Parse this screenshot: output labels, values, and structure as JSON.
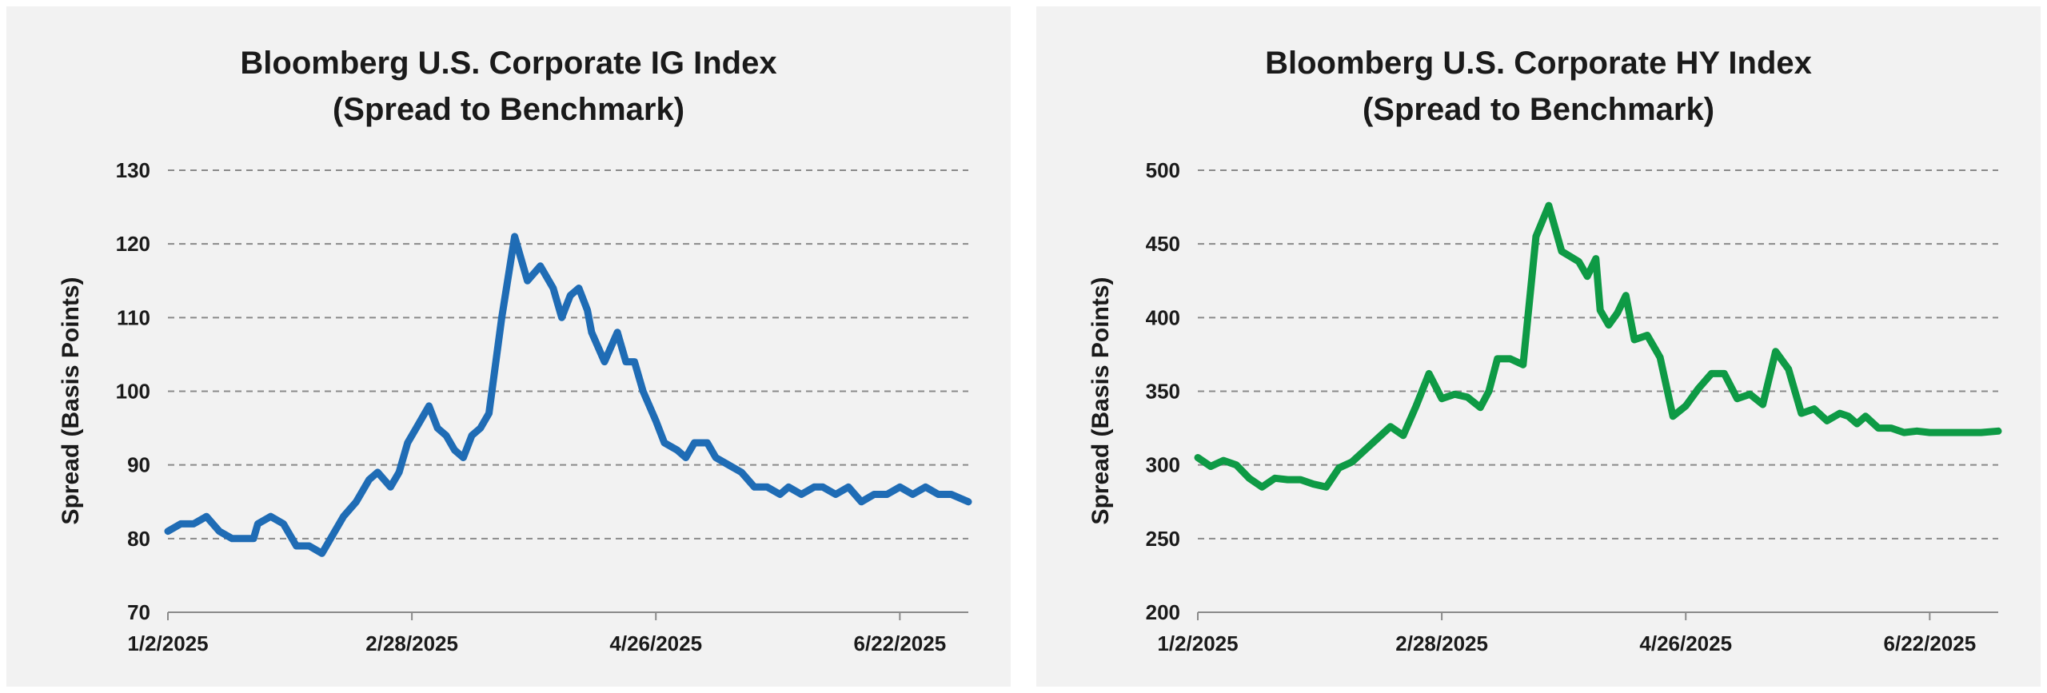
{
  "chart_data": [
    {
      "type": "line",
      "title_line1": "Bloomberg U.S. Corporate IG Index",
      "title_line2": "(Spread to Benchmark)",
      "xlabel": "",
      "ylabel": "Spread (Basis Points)",
      "ylim": [
        70,
        130
      ],
      "yticks": [
        70,
        80,
        90,
        100,
        110,
        120,
        130
      ],
      "xlim": [
        "2025-01-02",
        "2025-07-08"
      ],
      "xticks": [
        "1/2/2025",
        "2/28/2025",
        "4/26/2025",
        "6/22/2025"
      ],
      "grid": "horizontal-dashed",
      "color": "#1f6cb5",
      "x": [
        "2025-01-02",
        "2025-01-05",
        "2025-01-08",
        "2025-01-11",
        "2025-01-14",
        "2025-01-17",
        "2025-01-20",
        "2025-01-22",
        "2025-01-23",
        "2025-01-26",
        "2025-01-29",
        "2025-02-01",
        "2025-02-04",
        "2025-02-07",
        "2025-02-10",
        "2025-02-12",
        "2025-02-15",
        "2025-02-18",
        "2025-02-20",
        "2025-02-23",
        "2025-02-25",
        "2025-02-27",
        "2025-03-01",
        "2025-03-04",
        "2025-03-06",
        "2025-03-08",
        "2025-03-10",
        "2025-03-12",
        "2025-03-14",
        "2025-03-16",
        "2025-03-18",
        "2025-03-21",
        "2025-03-24",
        "2025-03-27",
        "2025-03-30",
        "2025-04-02",
        "2025-04-04",
        "2025-04-06",
        "2025-04-08",
        "2025-04-10",
        "2025-04-11",
        "2025-04-14",
        "2025-04-17",
        "2025-04-19",
        "2025-04-21",
        "2025-04-23",
        "2025-04-26",
        "2025-04-28",
        "2025-05-01",
        "2025-05-03",
        "2025-05-05",
        "2025-05-08",
        "2025-05-10",
        "2025-05-13",
        "2025-05-16",
        "2025-05-19",
        "2025-05-22",
        "2025-05-25",
        "2025-05-27",
        "2025-05-30",
        "2025-06-02",
        "2025-06-04",
        "2025-06-07",
        "2025-06-10",
        "2025-06-13",
        "2025-06-16",
        "2025-06-19",
        "2025-06-22",
        "2025-06-25",
        "2025-06-28",
        "2025-07-01",
        "2025-07-04",
        "2025-07-08"
      ],
      "values": [
        81,
        82,
        82,
        83,
        81,
        80,
        80,
        80,
        82,
        83,
        82,
        79,
        79,
        78,
        81,
        83,
        85,
        88,
        89,
        87,
        89,
        93,
        95,
        98,
        95,
        94,
        92,
        91,
        94,
        95,
        97,
        110,
        121,
        115,
        117,
        114,
        110,
        113,
        114,
        111,
        108,
        104,
        108,
        104,
        104,
        100,
        96,
        93,
        92,
        91,
        93,
        93,
        91,
        90,
        89,
        87,
        87,
        86,
        87,
        86,
        87,
        87,
        86,
        87,
        85,
        86,
        86,
        87,
        86,
        87,
        86,
        86,
        85
      ]
    },
    {
      "type": "line",
      "title_line1": "Bloomberg U.S. Corporate HY Index",
      "title_line2": "(Spread to Benchmark)",
      "xlabel": "",
      "ylabel": "Spread (Basis Points)",
      "ylim": [
        200,
        500
      ],
      "yticks": [
        200,
        250,
        300,
        350,
        400,
        450,
        500
      ],
      "xlim": [
        "2025-01-02",
        "2025-07-08"
      ],
      "xticks": [
        "1/2/2025",
        "2/28/2025",
        "4/26/2025",
        "6/22/2025"
      ],
      "grid": "horizontal-dashed",
      "color": "#0e9a45",
      "x": [
        "2025-01-02",
        "2025-01-05",
        "2025-01-08",
        "2025-01-11",
        "2025-01-14",
        "2025-01-17",
        "2025-01-20",
        "2025-01-23",
        "2025-01-26",
        "2025-01-29",
        "2025-02-01",
        "2025-02-04",
        "2025-02-07",
        "2025-02-10",
        "2025-02-13",
        "2025-02-16",
        "2025-02-19",
        "2025-02-22",
        "2025-02-25",
        "2025-02-28",
        "2025-03-03",
        "2025-03-06",
        "2025-03-09",
        "2025-03-11",
        "2025-03-13",
        "2025-03-16",
        "2025-03-19",
        "2025-03-22",
        "2025-03-25",
        "2025-03-28",
        "2025-04-01",
        "2025-04-03",
        "2025-04-05",
        "2025-04-06",
        "2025-04-08",
        "2025-04-10",
        "2025-04-12",
        "2025-04-14",
        "2025-04-17",
        "2025-04-20",
        "2025-04-23",
        "2025-04-26",
        "2025-04-29",
        "2025-05-02",
        "2025-05-05",
        "2025-05-08",
        "2025-05-11",
        "2025-05-14",
        "2025-05-17",
        "2025-05-20",
        "2025-05-23",
        "2025-05-26",
        "2025-05-29",
        "2025-06-01",
        "2025-06-03",
        "2025-06-05",
        "2025-06-07",
        "2025-06-10",
        "2025-06-13",
        "2025-06-16",
        "2025-06-19",
        "2025-06-22",
        "2025-06-25",
        "2025-06-28",
        "2025-07-01",
        "2025-07-04",
        "2025-07-08"
      ],
      "values": [
        305,
        299,
        303,
        300,
        291,
        285,
        291,
        290,
        290,
        287,
        285,
        298,
        302,
        310,
        318,
        326,
        320,
        340,
        362,
        345,
        348,
        346,
        339,
        350,
        372,
        372,
        368,
        455,
        476,
        445,
        438,
        428,
        440,
        405,
        395,
        403,
        415,
        385,
        388,
        373,
        333,
        340,
        352,
        362,
        362,
        345,
        348,
        341,
        377,
        365,
        335,
        338,
        330,
        335,
        333,
        328,
        333,
        325,
        325,
        322,
        323,
        322,
        322,
        322,
        322,
        322,
        323
      ]
    }
  ]
}
